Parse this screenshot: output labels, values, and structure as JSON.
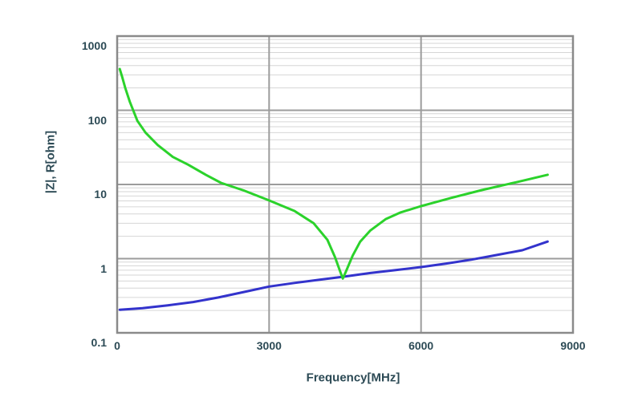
{
  "colors": {
    "background": "#ffffff",
    "text": "#2c4a55",
    "grid_minor": "#d6d6d6",
    "grid_major": "#9c9c9c",
    "border": "#8a8a8a",
    "impedance_green": "#2bd22b",
    "resistance_blue": "#3333cc"
  },
  "chart_data": {
    "type": "line",
    "title": "",
    "xlabel": "Frequency[MHz]",
    "ylabel": "|Z|, R[ohm]",
    "grid": true,
    "legend": "none",
    "x_axis": {
      "min": 0,
      "max": 9000,
      "scale": "linear",
      "ticks": [
        0,
        3000,
        6000,
        9000
      ],
      "tick_labels": [
        "0",
        "3000",
        "6000",
        "9000"
      ],
      "gridlines": [
        3000,
        6000
      ]
    },
    "y_axis": {
      "min": 0.1,
      "max": 1000,
      "scale": "log",
      "ticks": [
        1000,
        100,
        10,
        1,
        0.1
      ],
      "tick_labels": [
        "1000",
        "100",
        "10",
        "1",
        "0.1"
      ],
      "major_gridlines": [
        1,
        10,
        100
      ]
    },
    "series": [
      {
        "name": "|Z|",
        "color": "#2bd22b",
        "x": [
          50,
          100,
          160,
          250,
          400,
          560,
          800,
          1100,
          1400,
          1750,
          2050,
          2500,
          3000,
          3500,
          3880,
          4150,
          4300,
          4400,
          4455,
          4520,
          4650,
          4800,
          5000,
          5300,
          5600,
          6000,
          6600,
          7200,
          7900,
          8500
        ],
        "y": [
          360,
          280,
          200,
          130,
          72,
          50,
          34,
          23.5,
          18.5,
          13.5,
          10.5,
          8.3,
          6.1,
          4.4,
          3.0,
          1.8,
          1.05,
          0.68,
          0.54,
          0.68,
          1.1,
          1.7,
          2.4,
          3.4,
          4.2,
          5.1,
          6.6,
          8.4,
          10.8,
          13.5
        ]
      },
      {
        "name": "R",
        "color": "#3333cc",
        "x": [
          50,
          500,
          1000,
          1500,
          2000,
          2500,
          3000,
          3500,
          4000,
          4455,
          5000,
          5500,
          6000,
          6500,
          7000,
          7500,
          8000,
          8500
        ],
        "y": [
          0.205,
          0.215,
          0.235,
          0.26,
          0.3,
          0.355,
          0.42,
          0.47,
          0.52,
          0.57,
          0.64,
          0.7,
          0.77,
          0.86,
          0.97,
          1.12,
          1.3,
          1.7
        ]
      }
    ]
  }
}
